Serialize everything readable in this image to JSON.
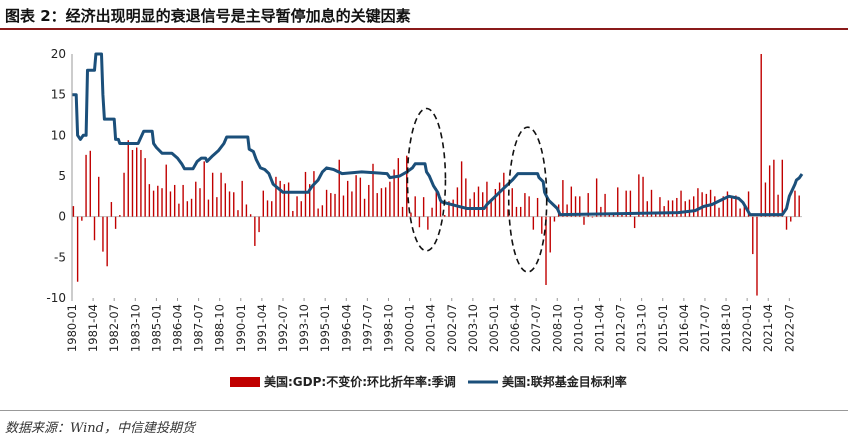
{
  "figure_title": "图表 2：经济出现明显的衰退信号是主导暂停加息的关键因素",
  "source": "数据来源：Wind，中信建投期货",
  "colors": {
    "bar": "#c00000",
    "line": "#1b4f7a",
    "title_rule": "#8a1a1a"
  },
  "chart_data": {
    "type": "bar+line",
    "ylim": [
      -10,
      20
    ],
    "yticks": [
      -10,
      -5,
      0,
      5,
      10,
      15,
      20
    ],
    "x_start": "1980-01",
    "x_end": "2023-04",
    "xtick_labels": [
      "1980-01",
      "1981-04",
      "1982-07",
      "1983-10",
      "1985-01",
      "1986-04",
      "1987-07",
      "1988-10",
      "1990-01",
      "1991-04",
      "1992-07",
      "1993-10",
      "1995-01",
      "1996-04",
      "1997-07",
      "1998-10",
      "2000-01",
      "2001-04",
      "2002-07",
      "2003-10",
      "2005-01",
      "2006-04",
      "2007-07",
      "2008-10",
      "2010-01",
      "2011-04",
      "2012-07",
      "2013-10",
      "2015-01",
      "2016-04",
      "2017-07",
      "2018-10",
      "2020-01",
      "2021-04",
      "2022-07"
    ],
    "legend": [
      {
        "label": "美国:GDP:不变价:环比折年率:季调",
        "type": "bar"
      },
      {
        "label": "美国:联邦基金目标利率",
        "type": "line"
      }
    ],
    "series": [
      {
        "name": "美国:GDP:不变价:环比折年率:季调",
        "type": "bar",
        "freq": "quarterly",
        "start": "1980-Q1",
        "values": [
          1.3,
          -8.0,
          -0.5,
          7.6,
          8.1,
          -2.9,
          4.9,
          -4.3,
          -6.1,
          1.8,
          -1.5,
          0.2,
          5.4,
          9.4,
          8.2,
          8.5,
          8.2,
          7.2,
          4.0,
          3.2,
          3.8,
          3.5,
          6.4,
          3.1,
          3.9,
          1.6,
          3.9,
          1.9,
          2.2,
          4.3,
          3.5,
          6.8,
          2.1,
          5.4,
          2.4,
          5.4,
          4.1,
          3.1,
          3.0,
          0.8,
          4.4,
          1.5,
          0.3,
          -3.6,
          -1.9,
          3.2,
          2.0,
          1.9,
          4.9,
          4.4,
          4.0,
          4.2,
          0.7,
          2.5,
          1.9,
          5.5,
          4.0,
          5.6,
          1.0,
          1.4,
          3.3,
          2.9,
          2.8,
          7.0,
          2.6,
          4.4,
          3.1,
          5.1,
          4.8,
          2.2,
          3.9,
          6.5,
          2.9,
          3.5,
          3.6,
          4.3,
          5.8,
          7.2,
          1.2,
          7.5,
          0.5,
          2.5,
          -1.3,
          2.4,
          -1.6,
          1.1,
          3.5,
          2.4,
          0.2,
          1.9,
          2.1,
          3.6,
          6.8,
          4.7,
          2.2,
          3.0,
          3.7,
          3.0,
          4.3,
          2.1,
          3.4,
          4.2,
          5.4,
          0.9,
          3.5,
          1.2,
          1.2,
          2.9,
          2.5,
          -1.6,
          2.3,
          -2.1,
          -8.4,
          -4.4,
          -0.6,
          1.5,
          4.5,
          1.5,
          3.7,
          2.5,
          2.5,
          -1.0,
          2.9,
          -0.1,
          4.7,
          1.2,
          2.8,
          0.5,
          0.5,
          3.6,
          0.5,
          3.2,
          3.2,
          -1.4,
          5.2,
          4.9,
          1.9,
          3.3,
          0.5,
          2.4,
          1.3,
          2.0,
          2.0,
          2.3,
          3.2,
          1.9,
          2.1,
          2.5,
          3.5,
          3.0,
          2.8,
          3.3,
          2.5,
          1.1,
          2.5,
          3.1,
          2.4,
          2.6,
          1.0,
          1.4,
          3.1,
          -4.6,
          -9.7,
          20.0,
          4.2,
          6.3,
          7.0,
          2.7,
          7.0,
          -1.6,
          -0.6,
          3.2,
          2.6,
          2.0,
          1.1
        ]
      },
      {
        "name": "美国:联邦基金目标利率",
        "type": "line",
        "points": [
          [
            "1980-01",
            15
          ],
          [
            "1980-04",
            15
          ],
          [
            "1980-05",
            10
          ],
          [
            "1980-07",
            9.5
          ],
          [
            "1980-09",
            10
          ],
          [
            "1980-11",
            10
          ],
          [
            "1980-12",
            18
          ],
          [
            "1981-05",
            18
          ],
          [
            "1981-06",
            20
          ],
          [
            "1981-10",
            20
          ],
          [
            "1981-11",
            15
          ],
          [
            "1981-12",
            12
          ],
          [
            "1982-07",
            12
          ],
          [
            "1982-08",
            9.5
          ],
          [
            "1982-10",
            9.5
          ],
          [
            "1982-11",
            9
          ],
          [
            "1983-12",
            9
          ],
          [
            "1984-04",
            10.5
          ],
          [
            "1984-10",
            10.5
          ],
          [
            "1984-11",
            9
          ],
          [
            "1985-01",
            8.5
          ],
          [
            "1985-05",
            7.8
          ],
          [
            "1985-12",
            7.8
          ],
          [
            "1986-04",
            7.2
          ],
          [
            "1986-07",
            6.5
          ],
          [
            "1986-09",
            5.9
          ],
          [
            "1987-03",
            5.9
          ],
          [
            "1987-06",
            6.8
          ],
          [
            "1987-09",
            7.2
          ],
          [
            "1987-12",
            7.2
          ],
          [
            "1988-01",
            6.8
          ],
          [
            "1988-05",
            7.5
          ],
          [
            "1988-09",
            8.1
          ],
          [
            "1989-01",
            9.0
          ],
          [
            "1989-03",
            9.8
          ],
          [
            "1989-07",
            9.8
          ],
          [
            "1990-06",
            9.8
          ],
          [
            "1990-07",
            8.3
          ],
          [
            "1990-10",
            8.0
          ],
          [
            "1990-12",
            7.0
          ],
          [
            "1991-03",
            6.0
          ],
          [
            "1991-06",
            5.8
          ],
          [
            "1991-09",
            5.3
          ],
          [
            "1991-12",
            4.0
          ],
          [
            "1992-07",
            3.0
          ],
          [
            "1994-01",
            3.0
          ],
          [
            "1994-02",
            3.3
          ],
          [
            "1994-04",
            3.8
          ],
          [
            "1994-08",
            4.5
          ],
          [
            "1994-11",
            5.5
          ],
          [
            "1995-02",
            6.0
          ],
          [
            "1995-07",
            5.8
          ],
          [
            "1996-01",
            5.3
          ],
          [
            "1997-03",
            5.5
          ],
          [
            "1998-09",
            5.3
          ],
          [
            "1998-11",
            4.8
          ],
          [
            "1999-06",
            5.0
          ],
          [
            "1999-11",
            5.5
          ],
          [
            "2000-03",
            6.0
          ],
          [
            "2000-05",
            6.5
          ],
          [
            "2000-12",
            6.5
          ],
          [
            "2001-01",
            5.5
          ],
          [
            "2001-03",
            5.0
          ],
          [
            "2001-06",
            3.8
          ],
          [
            "2001-09",
            3.0
          ],
          [
            "2001-11",
            2.0
          ],
          [
            "2001-12",
            1.8
          ],
          [
            "2002-11",
            1.3
          ],
          [
            "2003-06",
            1.0
          ],
          [
            "2004-06",
            1.0
          ],
          [
            "2004-08",
            1.5
          ],
          [
            "2005-02",
            2.5
          ],
          [
            "2005-08",
            3.5
          ],
          [
            "2006-02",
            4.5
          ],
          [
            "2006-06",
            5.3
          ],
          [
            "2007-08",
            5.3
          ],
          [
            "2007-09",
            4.8
          ],
          [
            "2007-12",
            4.3
          ],
          [
            "2008-01",
            3.0
          ],
          [
            "2008-03",
            2.3
          ],
          [
            "2008-04",
            2.0
          ],
          [
            "2008-10",
            1.0
          ],
          [
            "2008-12",
            0.25
          ],
          [
            "2015-12",
            0.5
          ],
          [
            "2016-12",
            0.75
          ],
          [
            "2017-06",
            1.25
          ],
          [
            "2017-12",
            1.5
          ],
          [
            "2018-06",
            2.0
          ],
          [
            "2018-12",
            2.5
          ],
          [
            "2019-07",
            2.25
          ],
          [
            "2019-10",
            1.75
          ],
          [
            "2020-03",
            0.25
          ],
          [
            "2022-02",
            0.25
          ],
          [
            "2022-03",
            0.5
          ],
          [
            "2022-05",
            1.0
          ],
          [
            "2022-06",
            1.75
          ],
          [
            "2022-07",
            2.5
          ],
          [
            "2022-09",
            3.25
          ],
          [
            "2022-11",
            4.0
          ],
          [
            "2022-12",
            4.5
          ],
          [
            "2023-02",
            4.75
          ],
          [
            "2023-04",
            5.25
          ]
        ]
      }
    ],
    "annotations": [
      {
        "type": "dashed-ellipse",
        "center_date": "2001-01",
        "y_range": [
          -4.2,
          13.3
        ]
      },
      {
        "type": "dashed-ellipse",
        "center_date": "2007-01",
        "y_range": [
          -6.8,
          11.0
        ]
      }
    ]
  }
}
